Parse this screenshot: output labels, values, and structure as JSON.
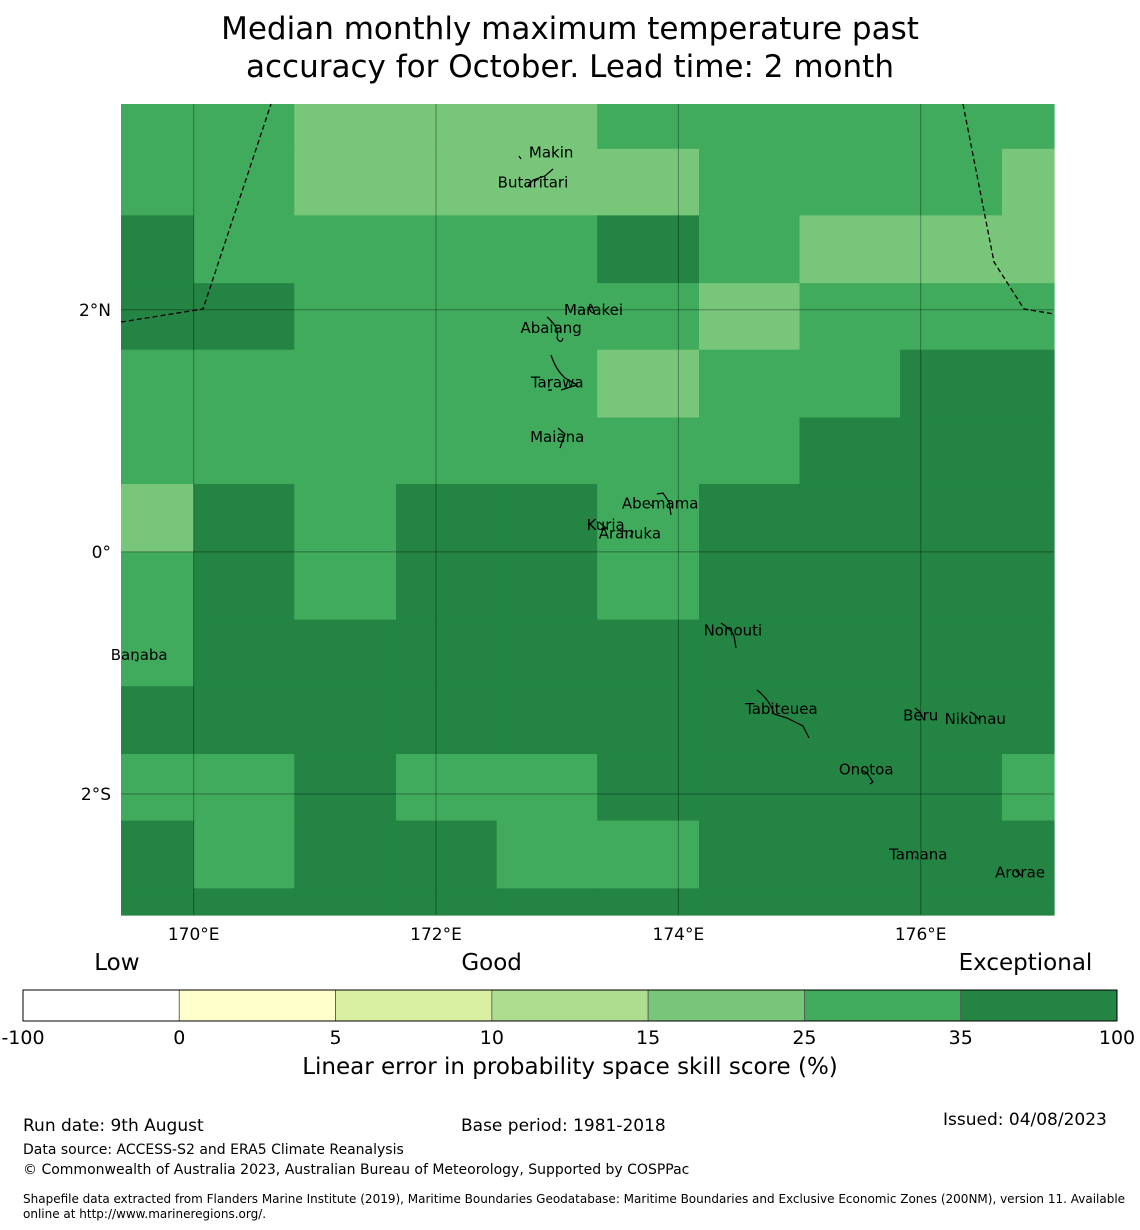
{
  "title_line1": "Median monthly maximum temperature past",
  "title_line2": "accuracy for October. Lead time: 2 month",
  "map": {
    "lon_ticks": [
      {
        "value": 170,
        "label": "170°E"
      },
      {
        "value": 172,
        "label": "172°E"
      },
      {
        "value": 174,
        "label": "174°E"
      },
      {
        "value": 176,
        "label": "176°E"
      }
    ],
    "lat_ticks": [
      {
        "value": 2,
        "label": "2°N"
      },
      {
        "value": 0,
        "label": "0°"
      },
      {
        "value": -2,
        "label": "2°S"
      }
    ],
    "islands": [
      {
        "name": "Makin",
        "lon": 172.95,
        "lat": 3.3
      },
      {
        "name": "Butaritari",
        "lon": 172.8,
        "lat": 3.05
      },
      {
        "name": "Marakei",
        "lon": 173.3,
        "lat": 2.0
      },
      {
        "name": "Abaiang",
        "lon": 172.95,
        "lat": 1.85
      },
      {
        "name": "Tarawa",
        "lon": 173.0,
        "lat": 1.4
      },
      {
        "name": "Maiana",
        "lon": 173.0,
        "lat": 0.95
      },
      {
        "name": "Abemama",
        "lon": 173.85,
        "lat": 0.4
      },
      {
        "name": "Kuria",
        "lon": 173.4,
        "lat": 0.22
      },
      {
        "name": "Aranuka",
        "lon": 173.6,
        "lat": 0.15
      },
      {
        "name": "Nonouti",
        "lon": 174.45,
        "lat": -0.65
      },
      {
        "name": "Banaba",
        "lon": 169.55,
        "lat": -0.85
      },
      {
        "name": "Tabiteuea",
        "lon": 174.85,
        "lat": -1.3
      },
      {
        "name": "Beru",
        "lon": 176.0,
        "lat": -1.35
      },
      {
        "name": "Nikunau",
        "lon": 176.45,
        "lat": -1.38
      },
      {
        "name": "Onotoa",
        "lon": 175.55,
        "lat": -1.8
      },
      {
        "name": "Tamana",
        "lon": 175.98,
        "lat": -2.5
      },
      {
        "name": "Arorae",
        "lon": 176.82,
        "lat": -2.65
      }
    ]
  },
  "colorbar": {
    "categories": [
      {
        "label": "Low",
        "value": -40
      },
      {
        "label": "Good",
        "value": 10
      },
      {
        "label": "Exceptional",
        "value": 62
      }
    ],
    "bins": [
      {
        "from": -100,
        "to": 0,
        "color": "#ffffff"
      },
      {
        "from": 0,
        "to": 5,
        "color": "#ffffcc"
      },
      {
        "from": 5,
        "to": 10,
        "color": "#d9f0a3"
      },
      {
        "from": 10,
        "to": 15,
        "color": "#addd8e"
      },
      {
        "from": 15,
        "to": 25,
        "color": "#78c679"
      },
      {
        "from": 25,
        "to": 35,
        "color": "#41ab5d"
      },
      {
        "from": 35,
        "to": 100,
        "color": "#238443"
      }
    ],
    "ticks": [
      "-100",
      "0",
      "5",
      "10",
      "15",
      "25",
      "35",
      "100"
    ],
    "label": "Linear error in probability space skill score (%)"
  },
  "footer": {
    "run_date": "Run date: 9th August",
    "base_period": "Base period: 1981-2018",
    "issued": "Issued: 04/08/2023",
    "data_source": "Data source: ACCESS-S2 and ERA5 Climate Reanalysis",
    "copyright": "© Commonwealth of Australia 2023, Australian Bureau of Meteorology, Supported by COSPPac",
    "shapefile": "Shapefile data extracted from Flanders Marine Institute (2019), Maritime Boundaries Geodatabase: Maritime Boundaries and Exclusive Economic Zones (200NM), version 11. Available online at http://www.marineregions.org/."
  },
  "chart_data": {
    "type": "heatmap",
    "title": "Median monthly maximum temperature past accuracy for October. Lead time: 2 month",
    "colorbar_label": "Linear error in probability space skill score (%)",
    "xlim": [
      169.4,
      177.1
    ],
    "ylim": [
      -3.0,
      3.7
    ],
    "cell_values_description": "skill category lower bound (%) per grid cell",
    "x_edges": [
      169.4,
      170.0,
      170.83,
      171.67,
      172.5,
      173.33,
      174.17,
      175.0,
      175.83,
      176.67,
      177.1
    ],
    "y_edges": [
      3.7,
      3.33,
      2.78,
      2.22,
      1.67,
      1.11,
      0.56,
      0.0,
      -0.56,
      -1.11,
      -1.67,
      -2.22,
      -2.78,
      -3.0
    ],
    "cells": [
      [
        25,
        25,
        15,
        15,
        15,
        25,
        25,
        25,
        25,
        25
      ],
      [
        25,
        25,
        15,
        15,
        15,
        15,
        25,
        25,
        25,
        15
      ],
      [
        35,
        25,
        25,
        25,
        25,
        35,
        25,
        15,
        15,
        15
      ],
      [
        35,
        35,
        25,
        25,
        25,
        25,
        15,
        25,
        25,
        25
      ],
      [
        25,
        25,
        25,
        25,
        25,
        15,
        25,
        25,
        35,
        35
      ],
      [
        25,
        25,
        25,
        25,
        25,
        25,
        25,
        35,
        35,
        35
      ],
      [
        15,
        35,
        25,
        35,
        35,
        25,
        35,
        35,
        35,
        35
      ],
      [
        25,
        35,
        25,
        35,
        35,
        25,
        35,
        35,
        35,
        35
      ],
      [
        25,
        35,
        35,
        35,
        35,
        35,
        35,
        35,
        35,
        35
      ],
      [
        35,
        35,
        35,
        35,
        35,
        35,
        35,
        35,
        35,
        35
      ],
      [
        25,
        25,
        35,
        25,
        25,
        35,
        35,
        35,
        35,
        25
      ],
      [
        35,
        25,
        35,
        35,
        25,
        25,
        35,
        35,
        35,
        35
      ],
      [
        35,
        35,
        35,
        35,
        35,
        35,
        35,
        35,
        35,
        35
      ]
    ]
  }
}
